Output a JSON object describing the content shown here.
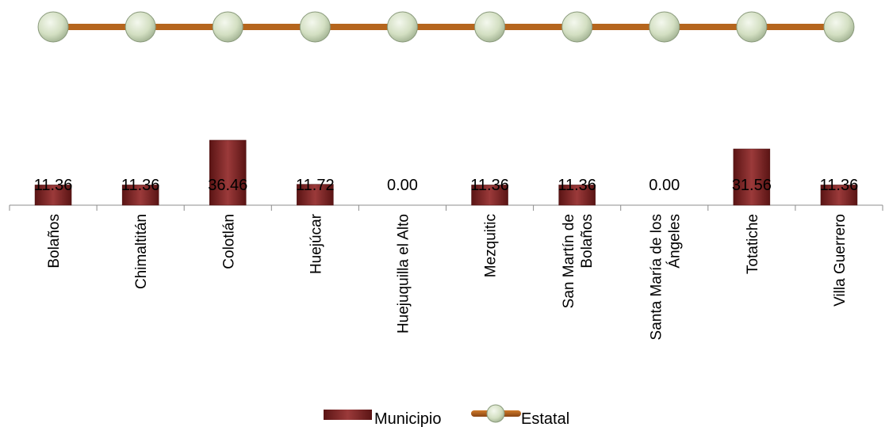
{
  "chart_data": {
    "type": "bar",
    "categories": [
      "Bolaños",
      "Chimaltitán",
      "Colotlán",
      "Huejúcar",
      "Huejuquilla el Alto",
      "Mezquitic",
      "San Martín de Bolaños",
      "Santa María de los Ángeles",
      "Totatiche",
      "Villa Guerrero"
    ],
    "category_label_lines": [
      [
        "Bolaños"
      ],
      [
        "Chimaltitán"
      ],
      [
        "Colotlán"
      ],
      [
        "Huejúcar"
      ],
      [
        "Huejuquilla el Alto"
      ],
      [
        "Mezquitic"
      ],
      [
        "San Martín de",
        "Bolaños"
      ],
      [
        "Santa María de los",
        "Ángeles"
      ],
      [
        "Totatiche"
      ],
      [
        "Villa Guerrero"
      ]
    ],
    "series": [
      {
        "name": "Municipio",
        "type": "bar",
        "values": [
          11.36,
          11.36,
          36.46,
          11.72,
          0.0,
          11.36,
          11.36,
          0.0,
          31.56,
          11.36
        ],
        "labels": [
          "11.36",
          "11.36",
          "36.46",
          "11.72",
          "0.00",
          "11.36",
          "11.36",
          "0.00",
          "31.56",
          "11.36"
        ],
        "color": "#7b2626"
      },
      {
        "name": "Estatal",
        "type": "line",
        "values": [
          100,
          100,
          100,
          100,
          100,
          100,
          100,
          100,
          100,
          100
        ],
        "color": "#b5651d",
        "marker_color": "#d8e4c8"
      }
    ],
    "ylim": [
      0,
      100
    ],
    "grid": false,
    "legend": "bottom"
  }
}
